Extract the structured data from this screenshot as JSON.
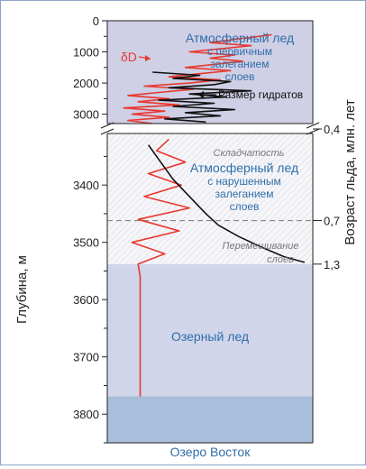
{
  "chart_data": {
    "type": "line",
    "y_axis_label": "Глубина, м",
    "right_axis_label": "Возраст льда, млн. лет",
    "upper_panel": {
      "ylim": [
        0,
        3300
      ],
      "ticks": [
        0,
        1000,
        2000,
        3000
      ],
      "tick_labels": [
        "0",
        "1000",
        "2000",
        "3000"
      ]
    },
    "lower_panel": {
      "ylim": [
        3310,
        3850
      ],
      "ticks": [
        3400,
        3500,
        3600,
        3700,
        3800
      ],
      "tick_labels": [
        "3400",
        "3500",
        "3600",
        "3700",
        "3800"
      ]
    },
    "age_labels": [
      {
        "depth": 3310,
        "label": "0,4"
      },
      {
        "depth": 3462,
        "label": "0,7"
      },
      {
        "depth": 3538,
        "label": "1,3"
      }
    ],
    "zones": [
      {
        "name": "atmospheric-primary",
        "from": 0,
        "to": 3300,
        "color": "#cfcfe6",
        "lines": [
          "Атмосферный лед",
          "с первичным",
          "залеганием",
          "слоев"
        ]
      },
      {
        "name": "atmospheric-disturbed",
        "from": 3310,
        "to": 3538,
        "color": "#f6f6f9",
        "lines": [
          "Атмосферный лед",
          "с нарушенным",
          "залеганием",
          "слоев"
        ]
      },
      {
        "name": "lake-ice",
        "from": 3538,
        "to": 3769,
        "color": "#d1d5ea",
        "lines": [
          "Озерный лед"
        ]
      },
      {
        "name": "lake-vostok",
        "from": 3769,
        "to": 3850,
        "color": "#a8bedb",
        "lines": [
          "Озеро Восток"
        ]
      }
    ],
    "annotations": {
      "folding": "Складчатость",
      "mixing": [
        "Перемешивание",
        "слоев"
      ],
      "delta_d": "δD",
      "hydrate": "Размер гидратов"
    },
    "series": [
      {
        "name": "δD",
        "color": "#e8382e",
        "points": [
          [
            450,
            0.8
          ],
          [
            600,
            0.62
          ],
          [
            700,
            0.5
          ],
          [
            800,
            0.7
          ],
          [
            900,
            0.55
          ],
          [
            1000,
            0.4
          ],
          [
            1100,
            0.62
          ],
          [
            1200,
            0.5
          ],
          [
            1300,
            0.66
          ],
          [
            1400,
            0.52
          ],
          [
            1500,
            0.38
          ],
          [
            1600,
            0.6
          ],
          [
            1700,
            0.45
          ],
          [
            1800,
            0.3
          ],
          [
            1900,
            0.55
          ],
          [
            2000,
            0.4
          ],
          [
            2100,
            0.18
          ],
          [
            2200,
            0.42
          ],
          [
            2300,
            0.25
          ],
          [
            2400,
            0.1
          ],
          [
            2500,
            0.3
          ],
          [
            2600,
            0.15
          ],
          [
            2700,
            0.35
          ],
          [
            2800,
            0.08
          ],
          [
            2900,
            0.28
          ],
          [
            3000,
            0.12
          ],
          [
            3100,
            0.3
          ],
          [
            3200,
            0.1
          ],
          [
            3300,
            0.22
          ],
          [
            3320,
            0.3
          ],
          [
            3340,
            0.24
          ],
          [
            3360,
            0.38
          ],
          [
            3380,
            0.2
          ],
          [
            3400,
            0.36
          ],
          [
            3420,
            0.18
          ],
          [
            3440,
            0.4
          ],
          [
            3460,
            0.15
          ],
          [
            3480,
            0.35
          ],
          [
            3500,
            0.12
          ],
          [
            3520,
            0.28
          ],
          [
            3538,
            0.15
          ],
          [
            3560,
            0.16
          ],
          [
            3600,
            0.16
          ],
          [
            3650,
            0.16
          ],
          [
            3700,
            0.16
          ],
          [
            3769,
            0.16
          ]
        ]
      },
      {
        "name": "Размер гидратов",
        "color": "#111111",
        "points": [
          [
            1650,
            0.22
          ],
          [
            1750,
            0.45
          ],
          [
            1850,
            0.32
          ],
          [
            1950,
            0.6
          ],
          [
            2050,
            0.52
          ],
          [
            2150,
            0.3
          ],
          [
            2250,
            0.7
          ],
          [
            2350,
            0.4
          ],
          [
            2450,
            0.58
          ],
          [
            2550,
            0.25
          ],
          [
            2650,
            0.52
          ],
          [
            2750,
            0.32
          ],
          [
            2850,
            0.62
          ],
          [
            2950,
            0.38
          ],
          [
            3050,
            0.55
          ],
          [
            3150,
            0.28
          ],
          [
            3250,
            0.48
          ],
          [
            3330,
            0.2
          ],
          [
            3360,
            0.26
          ],
          [
            3390,
            0.32
          ],
          [
            3420,
            0.4
          ],
          [
            3450,
            0.48
          ],
          [
            3470,
            0.54
          ],
          [
            3490,
            0.64
          ],
          [
            3510,
            0.76
          ],
          [
            3525,
            0.86
          ],
          [
            3535,
            0.96
          ]
        ]
      }
    ]
  }
}
